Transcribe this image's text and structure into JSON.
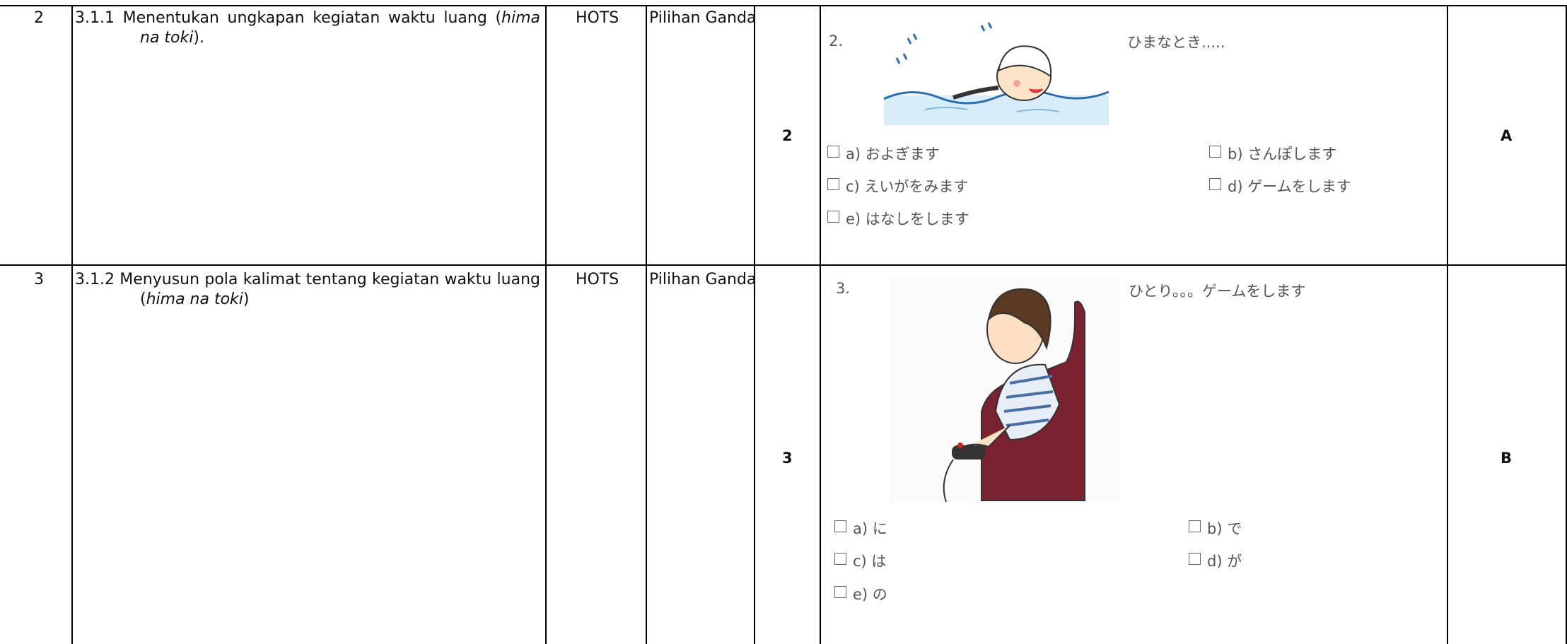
{
  "table": {
    "rows": [
      {
        "no": "2",
        "indicator": {
          "before": "3.1.1 Menentukan ungkapan kegiatan waktu luang (",
          "italic": "hima na toki",
          "after": ")."
        },
        "level": "HOTS",
        "form": "Pilihan Ganda",
        "number": "2",
        "question": {
          "label": "2.",
          "prompt": "ひまなとき.....",
          "options": [
            "a) およぎます",
            "b) さんぽします",
            "c) えいがをみます",
            "d) ゲームをします",
            "e) はなしをします"
          ]
        },
        "answer": "A"
      },
      {
        "no": "3",
        "indicator": {
          "before": "3.1.2 Menyusun pola kalimat tentang kegiatan waktu luang (",
          "italic": "hima na toki",
          "after": ")"
        },
        "level": "HOTS",
        "form": "Pilihan Ganda",
        "number": "3",
        "question": {
          "label": "3.",
          "prompt": "ひとり。。。ゲームをします",
          "options": [
            "a) に",
            "b) で",
            "c) は",
            "d) が",
            "e) の"
          ]
        },
        "answer": "B"
      }
    ]
  }
}
